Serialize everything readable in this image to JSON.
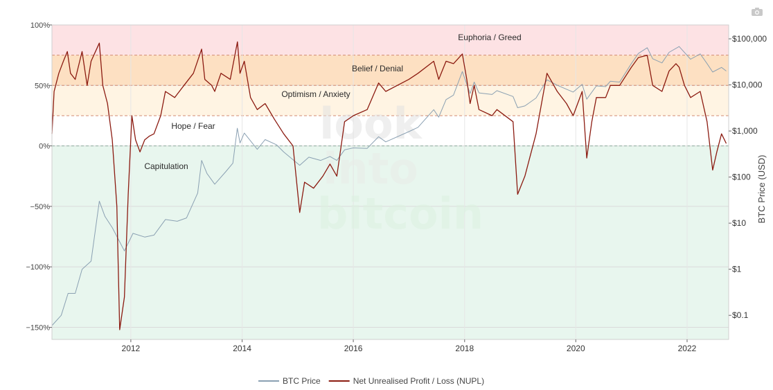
{
  "chart_data": {
    "type": "line",
    "title": "",
    "watermark": [
      "look",
      "into",
      "bitcoin"
    ],
    "x_ticks": [
      "2012",
      "2014",
      "2016",
      "2018",
      "2020",
      "2022"
    ],
    "x_range": [
      "2010-08-01",
      "2022-10-01"
    ],
    "y_left": {
      "label": "",
      "range": [
        -1.6,
        1.0
      ],
      "ticks": [
        {
          "value": 1.0,
          "label": "100%"
        },
        {
          "value": 0.5,
          "label": "50%"
        },
        {
          "value": 0.0,
          "label": "0%"
        },
        {
          "value": -0.5,
          "label": "−50%"
        },
        {
          "value": -1.0,
          "label": "−100%"
        },
        {
          "value": -1.5,
          "label": "−150%"
        }
      ]
    },
    "y_right": {
      "label": "BTC Price (USD)",
      "scale": "log",
      "range": [
        0.03,
        200000
      ],
      "ticks": [
        {
          "value": 100000,
          "label": "$100,000"
        },
        {
          "value": 10000,
          "label": "$10,000"
        },
        {
          "value": 1000,
          "label": "$1,000"
        },
        {
          "value": 100,
          "label": "$100"
        },
        {
          "value": 10,
          "label": "$10"
        },
        {
          "value": 1,
          "label": "$1"
        },
        {
          "value": 0.1,
          "label": "$0.1"
        }
      ]
    },
    "zones": [
      {
        "label": "Euphoria / Greed",
        "from": 0.75,
        "to": 1.0,
        "color": "#fde2e4"
      },
      {
        "label": "Belief / Denial",
        "from": 0.5,
        "to": 0.75,
        "color": "#fde0c2"
      },
      {
        "label": "Optimism / Anxiety",
        "from": 0.25,
        "to": 0.5,
        "color": "#fff4e3"
      },
      {
        "label": "Hope / Fear",
        "from": 0.0,
        "to": 0.25,
        "color": "#ffffff"
      },
      {
        "label": "Capitulation",
        "from": -1.6,
        "to": 0.0,
        "color": "#e8f6ee"
      }
    ],
    "series": [
      {
        "name": "BTC Price",
        "axis": "right",
        "color": "#8aa0b2",
        "points": [
          [
            "2010-08-01",
            0.06
          ],
          [
            "2010-10-01",
            0.1
          ],
          [
            "2010-11-15",
            0.3
          ],
          [
            "2011-01-01",
            0.3
          ],
          [
            "2011-02-15",
            1.0
          ],
          [
            "2011-04-15",
            1.5
          ],
          [
            "2011-06-08",
            30
          ],
          [
            "2011-07-15",
            14
          ],
          [
            "2011-09-01",
            8
          ],
          [
            "2011-11-20",
            2.5
          ],
          [
            "2012-01-15",
            6
          ],
          [
            "2012-04-01",
            5
          ],
          [
            "2012-06-01",
            5.5
          ],
          [
            "2012-08-15",
            12
          ],
          [
            "2012-11-01",
            11
          ],
          [
            "2013-01-01",
            13
          ],
          [
            "2013-03-15",
            45
          ],
          [
            "2013-04-10",
            230
          ],
          [
            "2013-05-15",
            120
          ],
          [
            "2013-07-05",
            70
          ],
          [
            "2013-09-15",
            130
          ],
          [
            "2013-11-01",
            200
          ],
          [
            "2013-11-30",
            1150
          ],
          [
            "2013-12-18",
            550
          ],
          [
            "2014-01-15",
            900
          ],
          [
            "2014-04-10",
            400
          ],
          [
            "2014-06-01",
            650
          ],
          [
            "2014-08-15",
            500
          ],
          [
            "2014-10-01",
            350
          ],
          [
            "2015-01-14",
            180
          ],
          [
            "2015-03-15",
            270
          ],
          [
            "2015-06-01",
            230
          ],
          [
            "2015-08-01",
            280
          ],
          [
            "2015-09-15",
            230
          ],
          [
            "2015-11-05",
            390
          ],
          [
            "2016-01-01",
            430
          ],
          [
            "2016-04-01",
            420
          ],
          [
            "2016-06-15",
            750
          ],
          [
            "2016-08-01",
            580
          ],
          [
            "2016-12-31",
            970
          ],
          [
            "2017-03-01",
            1200
          ],
          [
            "2017-06-12",
            2900
          ],
          [
            "2017-07-15",
            2000
          ],
          [
            "2017-09-01",
            4800
          ],
          [
            "2017-10-20",
            6000
          ],
          [
            "2017-12-17",
            19500
          ],
          [
            "2018-02-06",
            6500
          ],
          [
            "2018-03-05",
            11500
          ],
          [
            "2018-04-05",
            6700
          ],
          [
            "2018-06-30",
            6200
          ],
          [
            "2018-08-01",
            7500
          ],
          [
            "2018-11-15",
            5600
          ],
          [
            "2018-12-15",
            3200
          ],
          [
            "2019-02-01",
            3500
          ],
          [
            "2019-04-15",
            5200
          ],
          [
            "2019-06-26",
            12900
          ],
          [
            "2019-09-01",
            9800
          ],
          [
            "2019-12-15",
            7000
          ],
          [
            "2020-02-12",
            10300
          ],
          [
            "2020-03-13",
            4900
          ],
          [
            "2020-05-15",
            9500
          ],
          [
            "2020-07-15",
            9200
          ],
          [
            "2020-08-15",
            12000
          ],
          [
            "2020-10-15",
            11500
          ],
          [
            "2020-12-31",
            29000
          ],
          [
            "2021-02-15",
            48000
          ],
          [
            "2021-04-14",
            64000
          ],
          [
            "2021-05-20",
            37000
          ],
          [
            "2021-07-20",
            30000
          ],
          [
            "2021-09-05",
            51000
          ],
          [
            "2021-11-10",
            68000
          ],
          [
            "2022-01-24",
            36000
          ],
          [
            "2022-03-28",
            47000
          ],
          [
            "2022-05-12",
            29000
          ],
          [
            "2022-06-18",
            19000
          ],
          [
            "2022-08-15",
            24000
          ],
          [
            "2022-09-15",
            20000
          ]
        ]
      },
      {
        "name": "Net Unrealised Profit / Loss (NUPL)",
        "axis": "left",
        "color": "#8b1a10",
        "points": [
          [
            "2010-08-01",
            0.1
          ],
          [
            "2010-08-15",
            0.45
          ],
          [
            "2010-09-15",
            0.6
          ],
          [
            "2010-10-15",
            0.7
          ],
          [
            "2010-11-10",
            0.78
          ],
          [
            "2010-12-01",
            0.6
          ],
          [
            "2011-01-01",
            0.55
          ],
          [
            "2011-02-15",
            0.78
          ],
          [
            "2011-03-20",
            0.5
          ],
          [
            "2011-04-15",
            0.7
          ],
          [
            "2011-06-08",
            0.85
          ],
          [
            "2011-07-01",
            0.5
          ],
          [
            "2011-08-01",
            0.35
          ],
          [
            "2011-09-01",
            0.05
          ],
          [
            "2011-10-01",
            -0.5
          ],
          [
            "2011-10-20",
            -1.52
          ],
          [
            "2011-11-20",
            -1.25
          ],
          [
            "2011-12-15",
            -0.4
          ],
          [
            "2012-01-08",
            0.25
          ],
          [
            "2012-02-01",
            0.05
          ],
          [
            "2012-03-01",
            -0.05
          ],
          [
            "2012-04-01",
            0.05
          ],
          [
            "2012-05-01",
            0.08
          ],
          [
            "2012-06-01",
            0.1
          ],
          [
            "2012-07-15",
            0.25
          ],
          [
            "2012-08-15",
            0.45
          ],
          [
            "2012-10-15",
            0.4
          ],
          [
            "2012-12-15",
            0.5
          ],
          [
            "2013-02-15",
            0.6
          ],
          [
            "2013-04-10",
            0.8
          ],
          [
            "2013-05-01",
            0.55
          ],
          [
            "2013-06-15",
            0.5
          ],
          [
            "2013-07-05",
            0.45
          ],
          [
            "2013-08-15",
            0.6
          ],
          [
            "2013-10-15",
            0.55
          ],
          [
            "2013-12-01",
            0.86
          ],
          [
            "2013-12-18",
            0.6
          ],
          [
            "2014-01-15",
            0.7
          ],
          [
            "2014-02-25",
            0.4
          ],
          [
            "2014-04-10",
            0.3
          ],
          [
            "2014-06-01",
            0.35
          ],
          [
            "2014-08-01",
            0.22
          ],
          [
            "2014-10-01",
            0.1
          ],
          [
            "2014-12-01",
            0.0
          ],
          [
            "2015-01-14",
            -0.55
          ],
          [
            "2015-02-15",
            -0.3
          ],
          [
            "2015-04-15",
            -0.35
          ],
          [
            "2015-06-15",
            -0.25
          ],
          [
            "2015-08-01",
            -0.15
          ],
          [
            "2015-09-15",
            -0.25
          ],
          [
            "2015-11-05",
            0.2
          ],
          [
            "2016-01-01",
            0.25
          ],
          [
            "2016-04-01",
            0.3
          ],
          [
            "2016-06-15",
            0.52
          ],
          [
            "2016-08-01",
            0.45
          ],
          [
            "2016-12-31",
            0.55
          ],
          [
            "2017-03-01",
            0.6
          ],
          [
            "2017-06-12",
            0.7
          ],
          [
            "2017-07-15",
            0.55
          ],
          [
            "2017-09-01",
            0.7
          ],
          [
            "2017-10-20",
            0.68
          ],
          [
            "2017-12-17",
            0.76
          ],
          [
            "2018-01-15",
            0.55
          ],
          [
            "2018-02-06",
            0.35
          ],
          [
            "2018-03-05",
            0.5
          ],
          [
            "2018-04-05",
            0.3
          ],
          [
            "2018-06-30",
            0.25
          ],
          [
            "2018-08-01",
            0.3
          ],
          [
            "2018-11-15",
            0.2
          ],
          [
            "2018-12-15",
            -0.4
          ],
          [
            "2019-02-01",
            -0.25
          ],
          [
            "2019-04-15",
            0.1
          ],
          [
            "2019-06-26",
            0.6
          ],
          [
            "2019-09-01",
            0.45
          ],
          [
            "2019-11-01",
            0.35
          ],
          [
            "2019-12-15",
            0.25
          ],
          [
            "2020-02-12",
            0.45
          ],
          [
            "2020-03-13",
            -0.1
          ],
          [
            "2020-04-15",
            0.2
          ],
          [
            "2020-05-15",
            0.4
          ],
          [
            "2020-07-15",
            0.4
          ],
          [
            "2020-08-15",
            0.5
          ],
          [
            "2020-10-15",
            0.5
          ],
          [
            "2020-12-31",
            0.65
          ],
          [
            "2021-02-15",
            0.73
          ],
          [
            "2021-04-14",
            0.75
          ],
          [
            "2021-05-20",
            0.5
          ],
          [
            "2021-07-20",
            0.45
          ],
          [
            "2021-09-05",
            0.62
          ],
          [
            "2021-10-20",
            0.68
          ],
          [
            "2021-11-10",
            0.65
          ],
          [
            "2021-12-15",
            0.5
          ],
          [
            "2022-01-24",
            0.4
          ],
          [
            "2022-03-28",
            0.45
          ],
          [
            "2022-05-12",
            0.2
          ],
          [
            "2022-06-18",
            -0.2
          ],
          [
            "2022-07-15",
            -0.05
          ],
          [
            "2022-08-15",
            0.1
          ],
          [
            "2022-09-15",
            0.02
          ]
        ]
      }
    ],
    "legend": {
      "position": "bottom-center",
      "items": [
        "BTC Price",
        "Net Unrealised Profit / Loss (NUPL)"
      ]
    }
  }
}
